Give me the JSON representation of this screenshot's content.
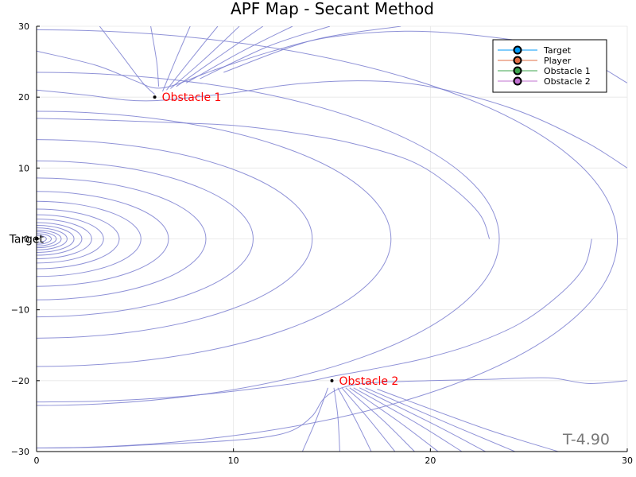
{
  "chart_data": {
    "type": "line",
    "title": "APF Map - Secant Method",
    "xlabel": "",
    "ylabel": "",
    "xlim": [
      0,
      30
    ],
    "ylim": [
      -30,
      30
    ],
    "x_ticks": [
      0,
      10,
      20,
      30
    ],
    "y_ticks": [
      -30,
      -20,
      -10,
      0,
      10,
      20,
      30
    ],
    "grid": true,
    "legend": {
      "placement": "top-right",
      "entries": [
        {
          "name": "Target",
          "color": "#009af9"
        },
        {
          "name": "Player",
          "color": "#e26f46"
        },
        {
          "name": "Obstacle 1",
          "color": "#3da44d"
        },
        {
          "name": "Obstacle 2",
          "color": "#c271d2"
        }
      ]
    },
    "contour_color": "#7b7fd0",
    "points": [
      {
        "name": "Target",
        "x": 0,
        "y": 0,
        "label": "Target",
        "label_color": "#000000"
      },
      {
        "name": "Obstacle 1",
        "x": 6,
        "y": 20,
        "label": "Obstacle 1",
        "label_color": "#ff0000"
      },
      {
        "name": "Obstacle 2",
        "x": 15,
        "y": -20,
        "label": "Obstacle 2",
        "label_color": "#ff0000"
      }
    ],
    "contours": {
      "goal_ellipse_half_widths": [
        0.5,
        0.75,
        1.0,
        1.25,
        1.55,
        1.9,
        2.3,
        2.8,
        3.4,
        4.2,
        5.3,
        6.7,
        8.6,
        11,
        14,
        18,
        23.5,
        29.5
      ],
      "goal_ellipse_y_ratio": 1.0,
      "upper_curves": [
        [
          [
            0,
            26.5
          ],
          [
            3,
            24.5
          ],
          [
            5,
            22.3
          ],
          [
            6,
            21.3
          ],
          [
            7,
            21.7
          ],
          [
            9,
            23.8
          ],
          [
            12,
            26.5
          ],
          [
            15,
            28.5
          ],
          [
            19,
            29.3
          ],
          [
            23,
            28.5
          ],
          [
            27,
            26.5
          ],
          [
            30,
            22
          ]
        ],
        [
          [
            0,
            21
          ],
          [
            2.5,
            20.3
          ],
          [
            4.5,
            19.6
          ],
          [
            6,
            19.5
          ],
          [
            8,
            20
          ],
          [
            10,
            20.6
          ],
          [
            13,
            21.8
          ],
          [
            16,
            22.3
          ],
          [
            19,
            21.9
          ],
          [
            22,
            20.2
          ],
          [
            25,
            17.5
          ],
          [
            28,
            13.5
          ],
          [
            30,
            10
          ]
        ],
        [
          [
            0,
            17
          ],
          [
            3,
            16.8
          ],
          [
            5,
            16.6
          ],
          [
            7,
            16.4
          ],
          [
            10,
            16
          ],
          [
            13,
            15
          ],
          [
            16,
            13.5
          ],
          [
            19,
            11
          ],
          [
            21,
            7.5
          ],
          [
            22.5,
            3.5
          ],
          [
            23,
            0
          ]
        ]
      ],
      "lower_curves": [
        [
          [
            0,
            -29.5
          ],
          [
            3,
            -29.4
          ],
          [
            6,
            -29
          ],
          [
            9,
            -28.6
          ],
          [
            11.5,
            -28
          ],
          [
            13,
            -27
          ],
          [
            14,
            -25
          ],
          [
            14.6,
            -22.5
          ],
          [
            15.5,
            -21
          ],
          [
            17,
            -20.3
          ],
          [
            20,
            -20
          ],
          [
            23,
            -19.8
          ],
          [
            26,
            -19.6
          ],
          [
            28,
            -20.4
          ],
          [
            30,
            -20
          ]
        ],
        [
          [
            0,
            -23
          ],
          [
            3,
            -22.9
          ],
          [
            6,
            -22.5
          ],
          [
            9,
            -21.8
          ],
          [
            12,
            -20.8
          ],
          [
            14,
            -20
          ],
          [
            15,
            -19.4
          ],
          [
            17,
            -18.4
          ],
          [
            19.5,
            -17
          ],
          [
            22,
            -15
          ],
          [
            24.5,
            -12
          ],
          [
            26.5,
            -8
          ],
          [
            27.8,
            -4
          ],
          [
            28.2,
            0
          ]
        ]
      ],
      "top_corner_curves": [
        [
          [
            3.2,
            30
          ],
          [
            4.3,
            26
          ],
          [
            5.4,
            22
          ],
          [
            6,
            20.4
          ]
        ],
        [
          [
            5.8,
            30
          ],
          [
            6.1,
            25
          ],
          [
            6.2,
            21.5
          ]
        ],
        [
          [
            7.8,
            30
          ],
          [
            7.1,
            25.5
          ],
          [
            6.4,
            20.8
          ]
        ],
        [
          [
            9.2,
            30
          ],
          [
            7.8,
            25.2
          ],
          [
            6.6,
            21
          ]
        ],
        [
          [
            10.3,
            30
          ],
          [
            8.5,
            25.3
          ],
          [
            6.8,
            21.2
          ]
        ],
        [
          [
            11.5,
            30
          ],
          [
            9.3,
            25.8
          ],
          [
            7.1,
            21.5
          ]
        ],
        [
          [
            13,
            30
          ],
          [
            10.4,
            26.4
          ],
          [
            7.6,
            22
          ]
        ],
        [
          [
            14.9,
            30
          ],
          [
            11.8,
            27.2
          ],
          [
            8.3,
            22.6
          ]
        ],
        [
          [
            18.5,
            30
          ],
          [
            14,
            28
          ],
          [
            9.5,
            23.5
          ]
        ]
      ],
      "bottom_corner_curves": [
        [
          [
            13.5,
            -30
          ],
          [
            14.2,
            -25.5
          ],
          [
            14.8,
            -21
          ]
        ],
        [
          [
            15.4,
            -30
          ],
          [
            15.3,
            -25
          ],
          [
            15.1,
            -21
          ]
        ],
        [
          [
            17,
            -30
          ],
          [
            16.2,
            -25.5
          ],
          [
            15.3,
            -21
          ]
        ],
        [
          [
            18.2,
            -30
          ],
          [
            16.9,
            -25.5
          ],
          [
            15.5,
            -21
          ]
        ],
        [
          [
            19.2,
            -30
          ],
          [
            17.6,
            -25.6
          ],
          [
            15.7,
            -21
          ]
        ],
        [
          [
            20.4,
            -30
          ],
          [
            18.4,
            -25.8
          ],
          [
            15.9,
            -21
          ]
        ],
        [
          [
            21.6,
            -30
          ],
          [
            19.3,
            -26
          ],
          [
            16.1,
            -21
          ]
        ],
        [
          [
            22.8,
            -30
          ],
          [
            20.2,
            -26.2
          ],
          [
            16.4,
            -21
          ]
        ],
        [
          [
            24.3,
            -30
          ],
          [
            21.3,
            -26.5
          ],
          [
            16.7,
            -21
          ]
        ],
        [
          [
            26.5,
            -30
          ],
          [
            22.8,
            -26.8
          ],
          [
            17.3,
            -21.2
          ]
        ]
      ]
    }
  },
  "stamp": "T-4.90"
}
